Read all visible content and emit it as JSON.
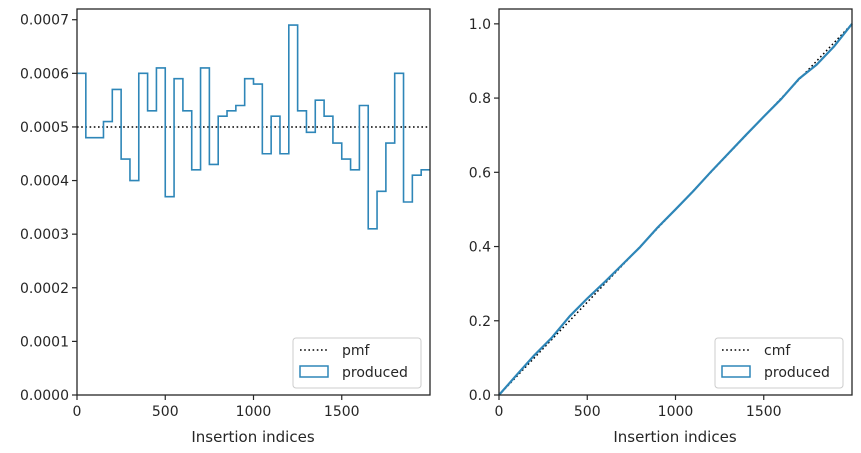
{
  "chart_data": [
    {
      "type": "histogram-step",
      "title": "",
      "xlabel": "Insertion indices",
      "ylabel": "",
      "xlim": [
        0,
        2000
      ],
      "ylim": [
        0,
        0.00072
      ],
      "xticks": [
        0,
        500,
        1000,
        1500
      ],
      "xtick_labels": [
        "0",
        "500",
        "1000",
        "1500"
      ],
      "yticks": [
        0,
        0.0001,
        0.0002,
        0.0003,
        0.0004,
        0.0005,
        0.0006,
        0.0007
      ],
      "ytick_labels": [
        "0.0000",
        "0.0001",
        "0.0002",
        "0.0003",
        "0.0004",
        "0.0005",
        "0.0006",
        "0.0007"
      ],
      "grid": false,
      "legend_position": "bottom-right",
      "legend": [
        {
          "label": "pmf",
          "style": "dotted-line",
          "color": "#000000"
        },
        {
          "label": "produced",
          "style": "step-box",
          "color": "#2e86b8"
        }
      ],
      "pmf": {
        "name": "pmf",
        "value": 0.0005
      },
      "series": [
        {
          "name": "produced",
          "bin_edges": [
            0,
            50,
            100,
            150,
            200,
            250,
            300,
            350,
            400,
            450,
            500,
            550,
            600,
            650,
            700,
            750,
            800,
            850,
            900,
            950,
            1000,
            1050,
            1100,
            1150,
            1200,
            1250,
            1300,
            1350,
            1400,
            1450,
            1500,
            1550,
            1600,
            1650,
            1700,
            1750,
            1800,
            1850,
            1900,
            1950,
            2000
          ],
          "values": [
            0.0006,
            0.00048,
            0.00048,
            0.00051,
            0.00057,
            0.00044,
            0.0004,
            0.0006,
            0.00053,
            0.00061,
            0.00037,
            0.00059,
            0.00053,
            0.00042,
            0.00061,
            0.00043,
            0.00052,
            0.00053,
            0.00054,
            0.00059,
            0.00058,
            0.00045,
            0.00052,
            0.00045,
            0.00069,
            0.00053,
            0.00049,
            0.00055,
            0.00052,
            0.00047,
            0.00044,
            0.00042,
            0.00054,
            0.00031,
            0.00038,
            0.00047,
            0.0006,
            0.00036,
            0.00041,
            0.00042
          ]
        }
      ]
    },
    {
      "type": "line",
      "title": "",
      "xlabel": "Insertion indices",
      "ylabel": "",
      "xlim": [
        0,
        2000
      ],
      "ylim": [
        0,
        1.04
      ],
      "xticks": [
        0,
        500,
        1000,
        1500
      ],
      "xtick_labels": [
        "0",
        "500",
        "1000",
        "1500"
      ],
      "yticks": [
        0,
        0.2,
        0.4,
        0.6,
        0.8,
        1.0
      ],
      "ytick_labels": [
        "0.0",
        "0.2",
        "0.4",
        "0.6",
        "0.8",
        "1.0"
      ],
      "grid": false,
      "legend_position": "bottom-right",
      "legend": [
        {
          "label": "cmf",
          "style": "dotted-line",
          "color": "#000000"
        },
        {
          "label": "produced",
          "style": "step-box",
          "color": "#2e86b8"
        }
      ],
      "cmf": {
        "name": "cmf",
        "x": [
          0,
          2000
        ],
        "y": [
          0,
          1.0
        ]
      },
      "series": [
        {
          "name": "produced",
          "x": [
            0,
            100,
            200,
            300,
            400,
            500,
            600,
            700,
            800,
            900,
            1000,
            1100,
            1200,
            1300,
            1400,
            1500,
            1600,
            1700,
            1800,
            1900,
            2000
          ],
          "y": [
            0,
            0.054,
            0.107,
            0.155,
            0.212,
            0.26,
            0.305,
            0.352,
            0.399,
            0.452,
            0.5,
            0.549,
            0.601,
            0.651,
            0.701,
            0.75,
            0.798,
            0.852,
            0.89,
            0.94,
            1.0
          ]
        }
      ]
    }
  ]
}
